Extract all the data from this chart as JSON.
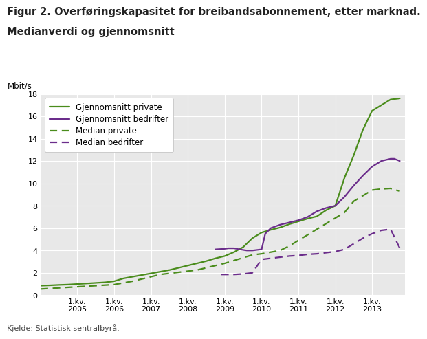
{
  "title_line1": "Figur 2. Overføringskapasitet for breibandsabonnement, etter marknad.",
  "title_line2": "Medianverdi og gjennomsnitt",
  "ylabel": "Mbit/s",
  "footnote": "Kjelde: Statistisk sentralbyrå.",
  "ylim": [
    0,
    18
  ],
  "yticks": [
    0,
    2,
    4,
    6,
    8,
    10,
    12,
    14,
    16,
    18
  ],
  "green_color": "#4a8c1c",
  "purple_color": "#6b2d8b",
  "plot_bg": "#e8e8e8",
  "fig_bg": "#ffffff",
  "grid_color": "#ffffff",
  "gjennomsnitt_private_x": [
    2004.0,
    2004.25,
    2004.5,
    2004.75,
    2005.0,
    2005.25,
    2005.5,
    2005.75,
    2006.0,
    2006.25,
    2006.5,
    2006.75,
    2007.0,
    2007.25,
    2007.5,
    2007.75,
    2008.0,
    2008.25,
    2008.5,
    2008.75,
    2009.0,
    2009.25,
    2009.5,
    2009.75,
    2010.0,
    2010.25,
    2010.5,
    2010.75,
    2011.0,
    2011.25,
    2011.5,
    2011.75,
    2012.0,
    2012.25,
    2012.5,
    2012.75,
    2013.0,
    2013.25,
    2013.5,
    2013.75
  ],
  "gjennomsnitt_private_y": [
    0.85,
    0.88,
    0.92,
    0.95,
    1.0,
    1.05,
    1.1,
    1.15,
    1.25,
    1.5,
    1.65,
    1.8,
    1.95,
    2.1,
    2.25,
    2.45,
    2.65,
    2.85,
    3.05,
    3.3,
    3.5,
    3.85,
    4.3,
    5.1,
    5.6,
    5.85,
    6.05,
    6.35,
    6.6,
    6.85,
    7.05,
    7.6,
    8.0,
    10.5,
    12.5,
    14.8,
    16.5,
    17.0,
    17.5,
    17.6
  ],
  "gjennomsnitt_bedrifter_x": [
    2008.75,
    2009.0,
    2009.1,
    2009.25,
    2009.4,
    2009.5,
    2009.6,
    2009.75,
    2010.0,
    2010.1,
    2010.25,
    2010.5,
    2010.75,
    2011.0,
    2011.25,
    2011.5,
    2011.75,
    2012.0,
    2012.25,
    2012.5,
    2012.75,
    2013.0,
    2013.25,
    2013.5,
    2013.6,
    2013.75
  ],
  "gjennomsnitt_bedrifter_y": [
    4.1,
    4.15,
    4.2,
    4.2,
    4.1,
    4.05,
    4.0,
    4.0,
    4.1,
    5.5,
    6.0,
    6.3,
    6.5,
    6.7,
    7.0,
    7.5,
    7.8,
    8.0,
    8.8,
    9.8,
    10.7,
    11.5,
    12.0,
    12.2,
    12.2,
    12.0
  ],
  "median_private_x": [
    2004.0,
    2004.25,
    2004.5,
    2004.75,
    2005.0,
    2005.25,
    2005.5,
    2005.75,
    2006.0,
    2006.25,
    2006.5,
    2006.75,
    2007.0,
    2007.25,
    2007.5,
    2007.75,
    2008.0,
    2008.25,
    2008.5,
    2008.75,
    2009.0,
    2009.25,
    2009.5,
    2009.75,
    2010.0,
    2010.25,
    2010.5,
    2010.75,
    2011.0,
    2011.25,
    2011.5,
    2011.75,
    2012.0,
    2012.25,
    2012.5,
    2012.75,
    2013.0,
    2013.25,
    2013.5,
    2013.75
  ],
  "median_private_y": [
    0.55,
    0.6,
    0.65,
    0.7,
    0.75,
    0.8,
    0.85,
    0.9,
    0.95,
    1.1,
    1.25,
    1.45,
    1.65,
    1.85,
    1.95,
    2.05,
    2.15,
    2.25,
    2.45,
    2.65,
    2.85,
    3.1,
    3.35,
    3.6,
    3.7,
    3.85,
    4.0,
    4.4,
    4.9,
    5.4,
    5.9,
    6.4,
    6.9,
    7.4,
    8.4,
    8.9,
    9.4,
    9.5,
    9.55,
    9.3
  ],
  "median_bedrifter_x": [
    2008.9,
    2009.0,
    2009.1,
    2009.25,
    2009.5,
    2009.75,
    2010.0,
    2010.25,
    2010.5,
    2010.75,
    2011.0,
    2011.25,
    2011.5,
    2011.75,
    2012.0,
    2012.25,
    2012.5,
    2012.75,
    2013.0,
    2013.25,
    2013.5,
    2013.75
  ],
  "median_bedrifter_y": [
    1.85,
    1.85,
    1.85,
    1.85,
    1.9,
    2.0,
    3.2,
    3.3,
    3.4,
    3.5,
    3.55,
    3.65,
    3.7,
    3.8,
    3.9,
    4.1,
    4.6,
    5.1,
    5.5,
    5.8,
    5.9,
    4.2
  ],
  "xtick_positions": [
    2005.0,
    2006.0,
    2007.0,
    2008.0,
    2009.0,
    2010.0,
    2011.0,
    2012.0,
    2013.0
  ],
  "xtick_labels": [
    "1.kv.\n2005",
    "1.kv.\n2006",
    "1.kv.\n2007",
    "1.kv.\n2008",
    "1.kv.\n2009",
    "1.kv.\n2010",
    "1.kv.\n2011",
    "1.kv.\n2012",
    "1.kv.\n2013"
  ]
}
